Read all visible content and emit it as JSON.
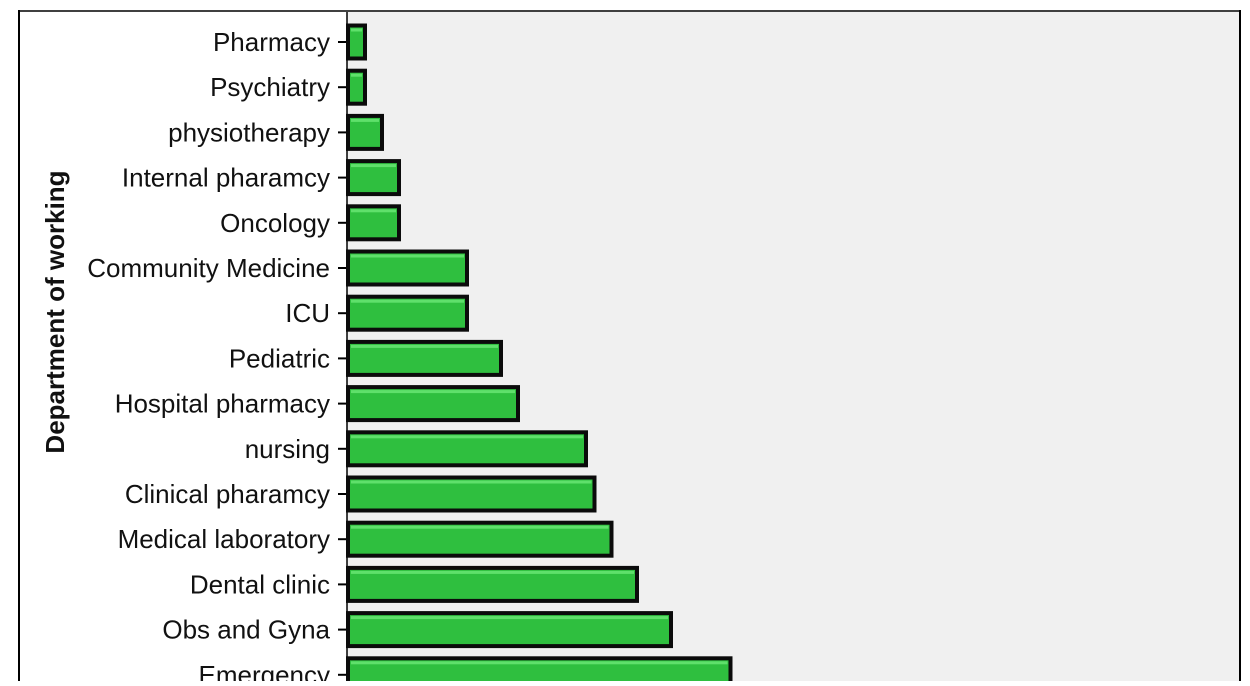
{
  "chart_data": {
    "type": "bar",
    "orientation": "horizontal",
    "ylabel": "Department of working",
    "xlabel": "",
    "categories": [
      "Pharmacy",
      "Psychiatry",
      "physiotherapy",
      "Internal pharamcy",
      "Oncology",
      "Community Medicine",
      "ICU",
      "Pediatric",
      "Hospital pharmacy",
      "nursing",
      "Clinical pharamcy",
      "Medical laboratory",
      "Dental clinic",
      "Obs and Gyna",
      "Emergency"
    ],
    "values": [
      1,
      1,
      2,
      3,
      3,
      7,
      7,
      9,
      10,
      14,
      14.5,
      15.5,
      17,
      19,
      22.5
    ],
    "grid": false,
    "colors": {
      "bar_fill": "#2fbf3f",
      "bar_highlight": "#5fe06b",
      "bar_outline": "#0b0b0b",
      "plot_background": "#f0f0f0",
      "frame": "#000000"
    }
  }
}
